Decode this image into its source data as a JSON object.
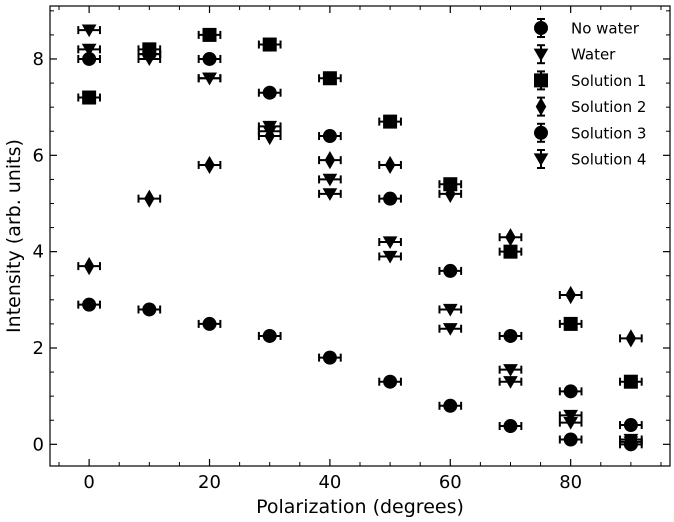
{
  "chart_data": {
    "type": "scatter",
    "xlabel": "Polarization (degrees)",
    "ylabel": "Intensity (arb. units)",
    "xlim": [
      -6.5,
      96.5
    ],
    "ylim": [
      -0.45,
      9.1
    ],
    "xticks": [
      "0",
      "20",
      "40",
      "60",
      "80"
    ],
    "yticks": [
      "0",
      "2",
      "4",
      "6",
      "8"
    ],
    "grid": false,
    "legend_position": "top-right",
    "error_bars": "horizontal",
    "x_error": 1.8,
    "series": [
      {
        "name": "No water",
        "marker": "circle",
        "x": [
          0,
          10,
          20,
          30,
          40,
          50,
          60,
          70,
          80,
          90
        ],
        "y": [
          2.9,
          2.8,
          2.5,
          2.25,
          1.8,
          1.3,
          0.8,
          0.38,
          0.1,
          0.0
        ]
      },
      {
        "name": "Water",
        "marker": "triangle-down",
        "x": [
          0,
          10,
          20,
          30,
          40,
          50,
          60,
          70,
          80,
          90
        ],
        "y": [
          8.6,
          8.1,
          7.6,
          6.6,
          5.5,
          4.2,
          2.8,
          1.55,
          0.6,
          0.1
        ]
      },
      {
        "name": "Solution 1",
        "marker": "square",
        "x": [
          0,
          10,
          20,
          30,
          40,
          50,
          60,
          70,
          80,
          90
        ],
        "y": [
          7.2,
          8.2,
          8.5,
          8.3,
          7.6,
          6.7,
          5.4,
          4.0,
          2.5,
          1.3
        ]
      },
      {
        "name": "Solution 2",
        "marker": "diamond",
        "x": [
          0,
          10,
          20,
          30,
          40,
          50,
          60,
          70,
          80,
          90
        ],
        "y": [
          3.7,
          5.1,
          5.8,
          6.4,
          5.9,
          5.8,
          5.2,
          4.3,
          3.1,
          2.2
        ]
      },
      {
        "name": "Solution 3",
        "marker": "circle",
        "x": [
          0,
          10,
          20,
          30,
          40,
          50,
          60,
          70,
          80,
          90
        ],
        "y": [
          8.0,
          8.1,
          8.0,
          7.3,
          6.4,
          5.1,
          3.6,
          2.25,
          1.1,
          0.4
        ]
      },
      {
        "name": "Solution 4",
        "marker": "triangle-down",
        "x": [
          0,
          10,
          20,
          30,
          40,
          50,
          60,
          70,
          80,
          90
        ],
        "y": [
          8.2,
          8.0,
          7.6,
          6.5,
          5.2,
          3.9,
          2.4,
          1.3,
          0.45,
          0.05
        ]
      }
    ]
  }
}
